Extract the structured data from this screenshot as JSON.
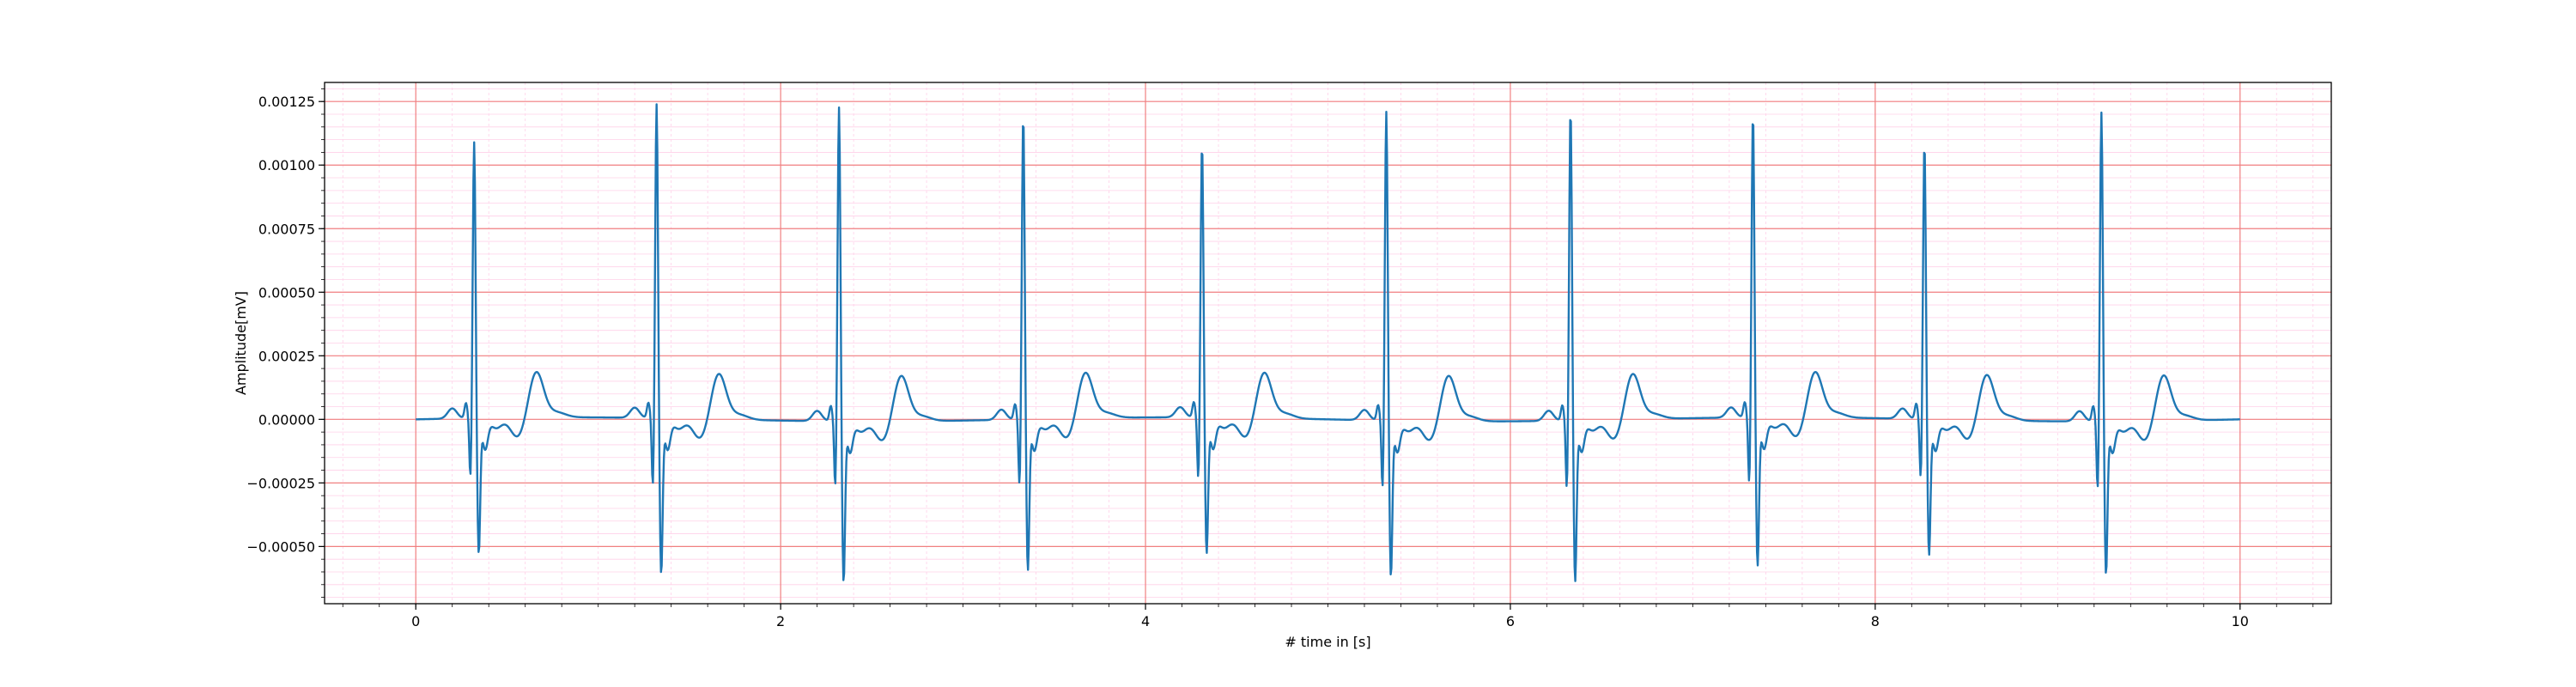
{
  "chart_data": {
    "type": "line",
    "title": "",
    "xlabel": "# time in [s]",
    "ylabel": "Amplitude[mV]",
    "xlim": [
      -0.5,
      10.5
    ],
    "ylim": [
      -0.000725,
      0.001325
    ],
    "x_ticks": [
      0,
      2,
      4,
      6,
      8,
      10
    ],
    "x_tick_labels": [
      "0",
      "2",
      "4",
      "6",
      "8",
      "10"
    ],
    "y_ticks": [
      -0.0005,
      -0.00025,
      0,
      0.00025,
      0.0005,
      0.00075,
      0.001,
      0.00125
    ],
    "y_tick_labels": [
      "−0.00050",
      "−0.00025",
      "0.00000",
      "0.00025",
      "0.00050",
      "0.00075",
      "0.00100",
      "0.00125"
    ],
    "grid": {
      "major": true,
      "minor": true,
      "major_color": "#f08080",
      "minor_color": "#ffd0e8"
    },
    "line_color": "#1f77b4",
    "series": [
      {
        "beats": [
          {
            "t": 0.32,
            "r": 0.00109,
            "s": -0.00053,
            "q": -0.00025
          },
          {
            "t": 1.32,
            "r": 0.00124,
            "s": -0.00061,
            "q": -0.00029
          },
          {
            "t": 2.32,
            "r": 0.00124,
            "s": -0.00063,
            "q": -0.00028
          },
          {
            "t": 3.33,
            "r": 0.0012,
            "s": -0.00059,
            "q": -0.00028
          },
          {
            "t": 4.31,
            "r": 0.00108,
            "s": -0.00053,
            "q": -0.00026
          },
          {
            "t": 5.32,
            "r": 0.00122,
            "s": -0.00061,
            "q": -0.00029
          },
          {
            "t": 6.33,
            "r": 0.00123,
            "s": -0.00063,
            "q": -0.00029
          },
          {
            "t": 7.33,
            "r": 0.0012,
            "s": -0.00058,
            "q": -0.00028
          },
          {
            "t": 8.27,
            "r": 0.00109,
            "s": -0.00053,
            "q": -0.00025
          },
          {
            "t": 9.24,
            "r": 0.00122,
            "s": -0.0006,
            "q": -0.00029
          }
        ],
        "t_end": 10.0,
        "sample_step": 0.004
      }
    ]
  }
}
